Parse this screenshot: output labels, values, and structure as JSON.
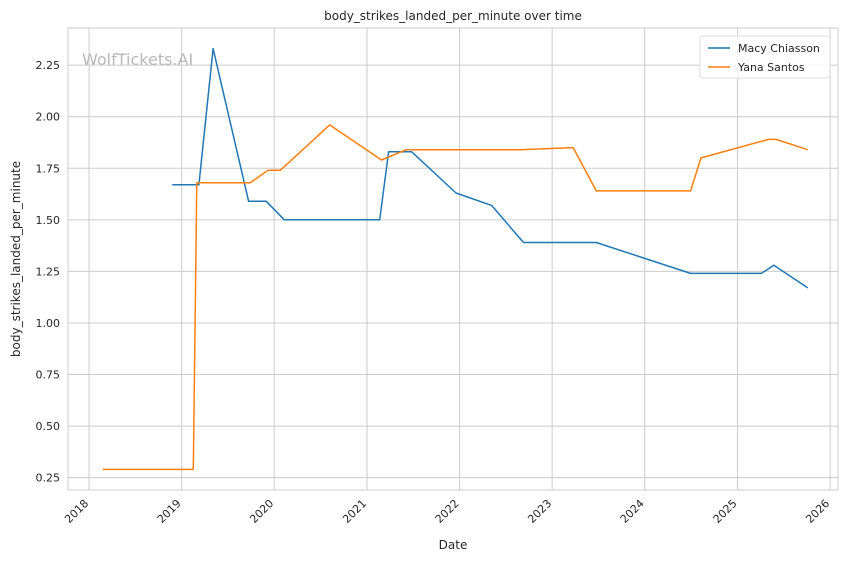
{
  "chart_data": {
    "type": "line",
    "title": "body_strikes_landed_per_minute over time",
    "xlabel": "Date",
    "ylabel": "body_strikes_landed_per_minute",
    "watermark": "WolfTickets.AI",
    "x_ticks": [
      "2018",
      "2019",
      "2020",
      "2021",
      "2022",
      "2023",
      "2024",
      "2025",
      "2026"
    ],
    "y_ticks": [
      "0.25",
      "0.50",
      "0.75",
      "1.00",
      "1.25",
      "1.50",
      "1.75",
      "2.00",
      "2.25"
    ],
    "xlim": [
      "2017-10-10",
      "2026-02-01"
    ],
    "ylim": [
      0.19,
      2.43
    ],
    "grid": true,
    "legend_position": "top-right",
    "series": [
      {
        "name": "Macy Chiasson",
        "color": "#1f77b4",
        "points": [
          [
            "2018-11-25",
            1.67
          ],
          [
            "2019-03-10",
            1.67
          ],
          [
            "2019-05-05",
            2.33
          ],
          [
            "2019-09-22",
            1.59
          ],
          [
            "2019-12-01",
            1.59
          ],
          [
            "2020-02-10",
            1.5
          ],
          [
            "2021-02-20",
            1.5
          ],
          [
            "2021-03-27",
            1.83
          ],
          [
            "2021-06-26",
            1.83
          ],
          [
            "2021-12-18",
            1.63
          ],
          [
            "2022-05-07",
            1.57
          ],
          [
            "2022-09-10",
            1.39
          ],
          [
            "2023-06-24",
            1.39
          ],
          [
            "2024-06-30",
            1.24
          ],
          [
            "2025-04-05",
            1.24
          ],
          [
            "2025-05-24",
            1.28
          ],
          [
            "2025-10-05",
            1.17
          ]
        ]
      },
      {
        "name": "Yana Santos",
        "color": "#ff7f0e",
        "points": [
          [
            "2018-02-24",
            0.29
          ],
          [
            "2019-02-16",
            0.29
          ],
          [
            "2019-03-02",
            1.68
          ],
          [
            "2019-09-29",
            1.68
          ],
          [
            "2019-12-07",
            1.74
          ],
          [
            "2020-01-25",
            1.74
          ],
          [
            "2020-08-07",
            1.96
          ],
          [
            "2021-02-27",
            1.79
          ],
          [
            "2021-06-05",
            1.84
          ],
          [
            "2022-08-27",
            1.84
          ],
          [
            "2023-03-25",
            1.85
          ],
          [
            "2023-06-24",
            1.64
          ],
          [
            "2024-06-30",
            1.64
          ],
          [
            "2024-08-10",
            1.8
          ],
          [
            "2025-05-03",
            1.89
          ],
          [
            "2025-06-01",
            1.89
          ],
          [
            "2025-10-05",
            1.84
          ]
        ]
      }
    ]
  }
}
